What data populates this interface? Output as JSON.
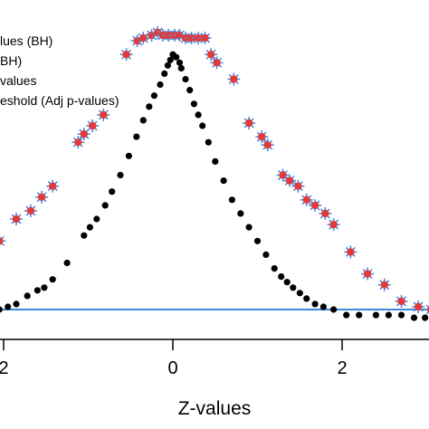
{
  "chart_data": {
    "type": "scatter",
    "title": "",
    "xlabel": "Z-values",
    "ylabel": "",
    "xlim": [
      -2.1,
      3.1
    ],
    "ylim": [
      -0.06,
      1.06
    ],
    "x_ticks": [
      -2,
      0,
      2
    ],
    "x_tick_labels": [
      "2",
      "0",
      "2"
    ],
    "grid": false,
    "legend_position": "top-left",
    "legend": [
      {
        "label": "lues (BH)",
        "marker": "red-dot-blue-star"
      },
      {
        "label": "BH)",
        "marker": "blue-star"
      },
      {
        "label": "values",
        "marker": "black-dot"
      },
      {
        "label": "eshold (Adj p-values)",
        "marker": "blue-line"
      }
    ],
    "threshold": {
      "y": 0.0,
      "color": "#3b8ad8"
    },
    "series": [
      {
        "kind": "raw",
        "color": "#000000",
        "points": [
          [
            -2.05,
            0.0
          ],
          [
            -1.95,
            0.01
          ],
          [
            -1.85,
            0.02
          ],
          [
            -1.72,
            0.05
          ],
          [
            -1.6,
            0.07
          ],
          [
            -1.52,
            0.08
          ],
          [
            -1.42,
            0.11
          ],
          [
            -1.25,
            0.17
          ],
          [
            -1.05,
            0.27
          ],
          [
            -0.98,
            0.3
          ],
          [
            -0.9,
            0.33
          ],
          [
            -0.8,
            0.38
          ],
          [
            -0.72,
            0.43
          ],
          [
            -0.62,
            0.49
          ],
          [
            -0.52,
            0.56
          ],
          [
            -0.43,
            0.63
          ],
          [
            -0.35,
            0.69
          ],
          [
            -0.28,
            0.74
          ],
          [
            -0.22,
            0.78
          ],
          [
            -0.15,
            0.82
          ],
          [
            -0.1,
            0.86
          ],
          [
            -0.06,
            0.89
          ],
          [
            -0.03,
            0.91
          ],
          [
            0.0,
            0.93
          ],
          [
            0.04,
            0.92
          ],
          [
            0.08,
            0.9
          ],
          [
            0.1,
            0.88
          ],
          [
            0.15,
            0.84
          ],
          [
            0.2,
            0.8
          ],
          [
            0.25,
            0.75
          ],
          [
            0.3,
            0.71
          ],
          [
            0.35,
            0.67
          ],
          [
            0.42,
            0.61
          ],
          [
            0.5,
            0.54
          ],
          [
            0.6,
            0.47
          ],
          [
            0.7,
            0.4
          ],
          [
            0.8,
            0.35
          ],
          [
            0.9,
            0.3
          ],
          [
            1.0,
            0.25
          ],
          [
            1.1,
            0.2
          ],
          [
            1.2,
            0.15
          ],
          [
            1.28,
            0.12
          ],
          [
            1.35,
            0.1
          ],
          [
            1.42,
            0.08
          ],
          [
            1.5,
            0.06
          ],
          [
            1.58,
            0.04
          ],
          [
            1.68,
            0.02
          ],
          [
            1.78,
            0.01
          ],
          [
            1.9,
            0.0
          ],
          [
            2.05,
            -0.02
          ],
          [
            2.2,
            -0.02
          ],
          [
            2.4,
            -0.02
          ],
          [
            2.55,
            -0.02
          ],
          [
            2.7,
            -0.02
          ],
          [
            2.85,
            -0.03
          ],
          [
            2.98,
            -0.03
          ]
        ]
      },
      {
        "kind": "adjusted",
        "color": "#e23a3a",
        "star_color": "#4a8fe0",
        "points": [
          [
            -2.05,
            0.25
          ],
          [
            -1.85,
            0.33
          ],
          [
            -1.68,
            0.36
          ],
          [
            -1.55,
            0.41
          ],
          [
            -1.42,
            0.45
          ],
          [
            -1.12,
            0.61
          ],
          [
            -1.05,
            0.64
          ],
          [
            -0.95,
            0.67
          ],
          [
            -0.82,
            0.71
          ],
          [
            -0.55,
            0.93
          ],
          [
            -0.42,
            0.98
          ],
          [
            -0.35,
            0.99
          ],
          [
            -0.25,
            1.0
          ],
          [
            -0.18,
            1.01
          ],
          [
            -0.12,
            1.0
          ],
          [
            -0.05,
            1.0
          ],
          [
            0.02,
            1.0
          ],
          [
            0.08,
            1.0
          ],
          [
            0.15,
            0.99
          ],
          [
            0.22,
            0.99
          ],
          [
            0.3,
            0.99
          ],
          [
            0.38,
            0.99
          ],
          [
            0.45,
            0.93
          ],
          [
            0.52,
            0.9
          ],
          [
            0.72,
            0.84
          ],
          [
            0.9,
            0.68
          ],
          [
            1.05,
            0.63
          ],
          [
            1.12,
            0.6
          ],
          [
            1.3,
            0.49
          ],
          [
            1.38,
            0.47
          ],
          [
            1.48,
            0.45
          ],
          [
            1.58,
            0.4
          ],
          [
            1.68,
            0.38
          ],
          [
            1.8,
            0.35
          ],
          [
            1.9,
            0.31
          ],
          [
            2.1,
            0.21
          ],
          [
            2.3,
            0.13
          ],
          [
            2.5,
            0.09
          ],
          [
            2.7,
            0.03
          ],
          [
            2.9,
            0.01
          ],
          [
            3.05,
            0.0
          ]
        ]
      }
    ]
  }
}
